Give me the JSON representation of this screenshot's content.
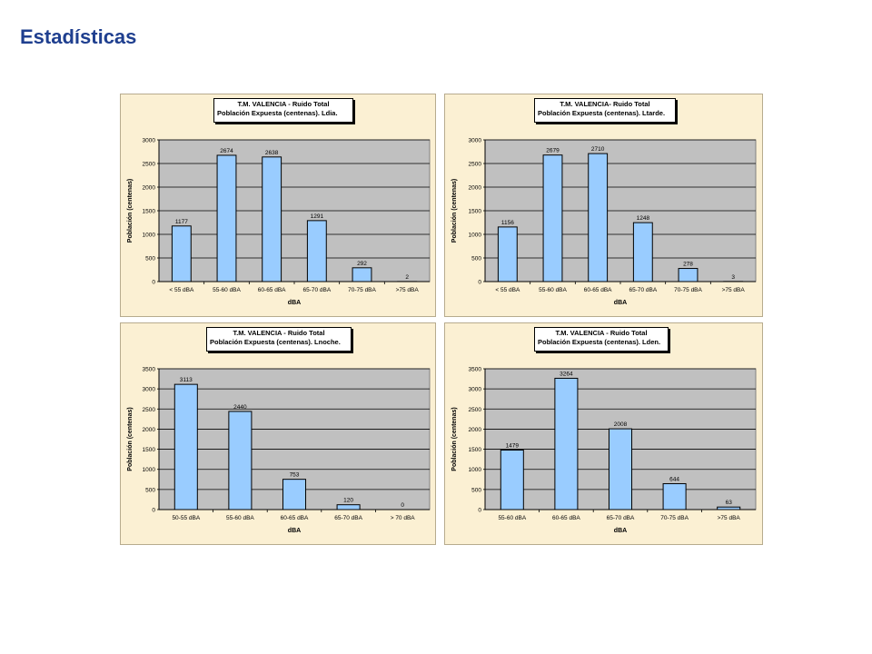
{
  "page": {
    "title": "Estadísticas"
  },
  "colors": {
    "title": "#1f3f8f",
    "panel_bg": "#fbf0d3",
    "plot_bg": "#c0c0c0",
    "bar_fill": "#99ccff",
    "bar_stroke": "#000000"
  },
  "chart_data": [
    {
      "type": "bar",
      "title_line1": "T.M. VALENCIA - Ruido Total",
      "title_line2": "Población Expuesta (centenas). Ldia.",
      "xlabel": "dBA",
      "ylabel": "Población (centenas)",
      "categories": [
        "< 55 dBA",
        "55-60 dBA",
        "60-65 dBA",
        "65-70 dBA",
        "70-75 dBA",
        ">75 dBA"
      ],
      "values": [
        1177,
        2674,
        2638,
        1291,
        292,
        2
      ],
      "ylim": [
        0,
        3000
      ],
      "ystep": 500,
      "grid": true
    },
    {
      "type": "bar",
      "title_line1": "T.M. VALENCIA- Ruido Total",
      "title_line2": "Población Expuesta (centenas). Ltarde.",
      "xlabel": "dBA",
      "ylabel": "Población (centenas)",
      "categories": [
        "< 55 dBA",
        "55-60 dBA",
        "60-65 dBA",
        "65-70 dBA",
        "70-75 dBA",
        ">75 dBA"
      ],
      "values": [
        1156,
        2679,
        2710,
        1248,
        278,
        3
      ],
      "ylim": [
        0,
        3000
      ],
      "ystep": 500,
      "grid": true
    },
    {
      "type": "bar",
      "title_line1": "T.M. VALENCIA - Ruido Total",
      "title_line2": "Población Expuesta (centenas). Lnoche.",
      "xlabel": "dBA",
      "ylabel": "Población (centenas)",
      "categories": [
        "50-55 dBA",
        "55-60 dBA",
        "60-65 dBA",
        "65-70 dBA",
        "> 70 dBA"
      ],
      "values": [
        3113,
        2440,
        753,
        120,
        0
      ],
      "ylim": [
        0,
        3500
      ],
      "ystep": 500,
      "grid": true
    },
    {
      "type": "bar",
      "title_line1": "T.M. VALENCIA - Ruido Total",
      "title_line2": "Población Expuesta (centenas). Lden.",
      "xlabel": "dBA",
      "ylabel": "Población (centenas)",
      "categories": [
        "55-60 dBA",
        "60-65 dBA",
        "65-70 dBA",
        "70-75 dBA",
        ">75 dBA"
      ],
      "values": [
        1479,
        3264,
        2008,
        644,
        63
      ],
      "ylim": [
        0,
        3500
      ],
      "ystep": 500,
      "grid": true
    }
  ]
}
